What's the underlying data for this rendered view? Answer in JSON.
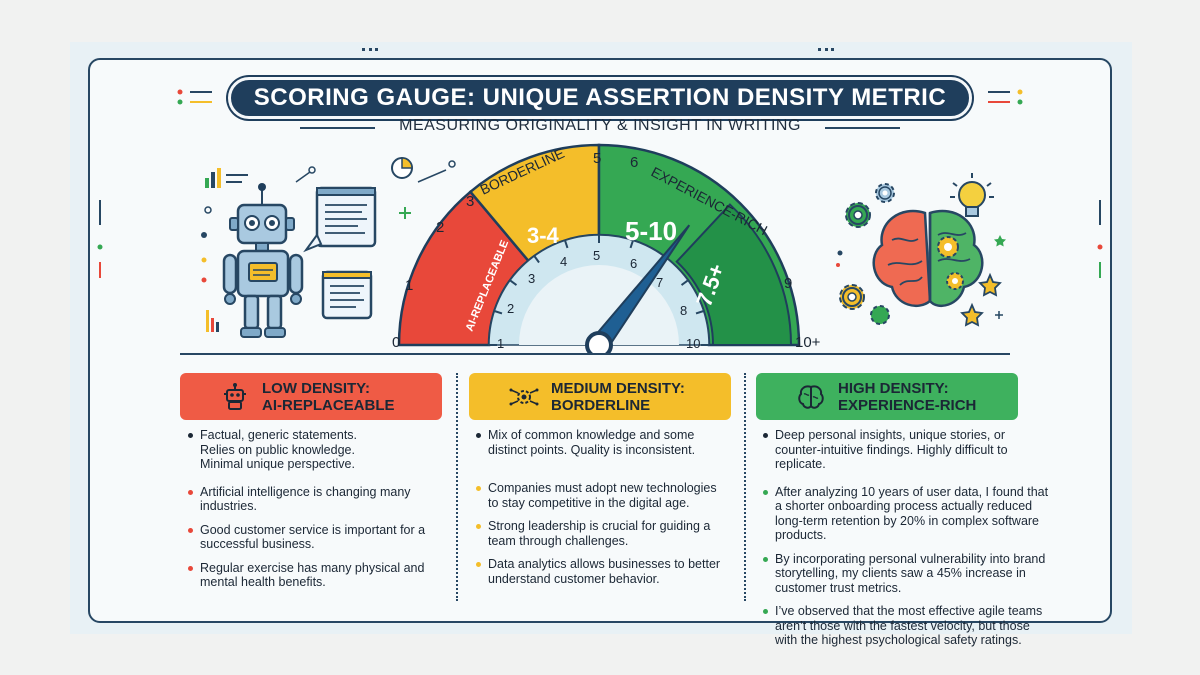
{
  "header": {
    "title": "SCORING GAUGE: UNIQUE ASSERTION DENSITY METRIC",
    "subtitle": "MEASURING ORIGINALITY & INSIGHT IN WRITING"
  },
  "gauge": {
    "outer_ticks": [
      "0",
      "1",
      "2",
      "3",
      "5",
      "6",
      "9",
      "10+"
    ],
    "inner_ticks": [
      "1",
      "2",
      "3",
      "4",
      "5",
      "6",
      "7",
      "8",
      "10"
    ],
    "zones": {
      "low": "AI-REPLACEABLE",
      "borderline_label": "BORDERLINE",
      "borderline_range": "3-4",
      "rich_label": "EXPERIENCE-RICH",
      "rich_range": "5-10",
      "rich_high": "7.5+"
    },
    "needle_value": 7.5,
    "colors": {
      "red": "#e8483a",
      "yellow": "#f4be2a",
      "green": "#35a853",
      "dark_green": "#239148",
      "navy": "#1f3e5c",
      "light_blue": "#cfe7f0"
    }
  },
  "sections": {
    "low": {
      "title_line1": "LOW DENSITY:",
      "title_line2": "AI-REPLACEABLE",
      "color": "#ef5b45",
      "intro": [
        "Factual, generic statements.",
        "Relies on public knowledge.",
        "Minimal unique perspective."
      ],
      "examples": [
        "Artificial intelligence is changing many industries.",
        "Good customer service is important for a successful business.",
        "Regular exercise has many physical and mental health benefits."
      ]
    },
    "medium": {
      "title_line1": "MEDIUM DENSITY:",
      "title_line2": "BORDERLINE",
      "color": "#f4be2a",
      "intro": [
        "Mix of common knowledge and some distinct points. Quality is inconsistent."
      ],
      "examples": [
        "Companies must adopt new technologies to stay competitive in the digital age.",
        "Strong leadership is crucial for guiding a team through challenges.",
        "Data analytics allows businesses to better understand customer behavior."
      ]
    },
    "high": {
      "title_line1": "HIGH DENSITY:",
      "title_line2": "EXPERIENCE-RICH",
      "color": "#3eb15e",
      "intro": [
        "Deep personal insights, unique stories, or counter-intuitive findings. Highly difficult to replicate."
      ],
      "examples": [
        "After analyzing 10 years of user data, I found that a shorter onboarding process actually reduced long-term retention by 20% in complex software products.",
        "By incorporating personal vulnerability into brand storytelling, my clients saw a 45% increase in customer trust metrics.",
        "I’ve observed that the most effective agile teams aren’t those with the fastest velocity, but those with the highest psychological safety ratings."
      ]
    }
  }
}
